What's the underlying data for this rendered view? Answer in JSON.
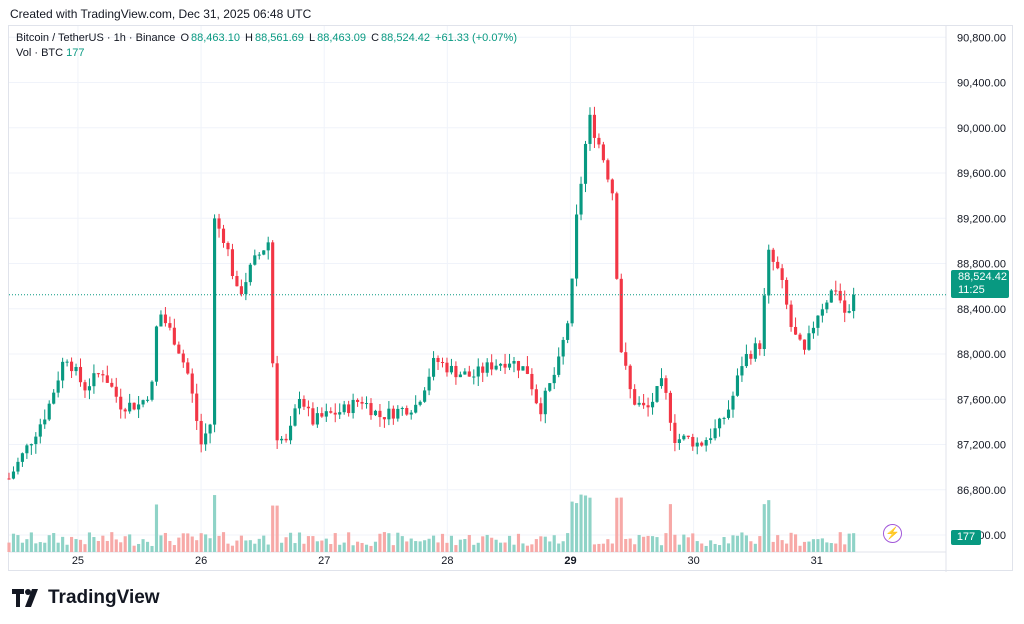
{
  "header": {
    "created": "Created with TradingView.com, Dec 31, 2025 06:48 UTC"
  },
  "legend": {
    "symbol": "Bitcoin / TetherUS · 1h · Binance",
    "o_label": "O",
    "o_value": "88,463.10",
    "h_label": "H",
    "h_value": "88,561.69",
    "l_label": "L",
    "l_value": "88,463.09",
    "c_label": "C",
    "c_value": "88,524.42",
    "change": "+61.33 (+0.07%)",
    "vol_label": "Vol · BTC",
    "vol_value": "177"
  },
  "price_tag": {
    "price": "88,524.42",
    "countdown": "11:25"
  },
  "volume_tag": "177",
  "brand": "TradingView",
  "colors": {
    "up": "#089981",
    "down": "#f23645",
    "up_vol": "#8fd3c7",
    "down_vol": "#f7a9a7",
    "grid": "#f0f3fa",
    "bolt": "#a259d9"
  },
  "chart_data": {
    "type": "candlestick",
    "interval": "1h",
    "x_ticks": [
      "25",
      "26",
      "27",
      "28",
      "29",
      "30",
      "31"
    ],
    "y_ticks": [
      "90,800.00",
      "90,400.00",
      "90,000.00",
      "89,600.00",
      "89,200.00",
      "88,800.00",
      "88,400.00",
      "88,000.00",
      "87,600.00",
      "87,200.00",
      "86,800.00",
      "86,400.00"
    ],
    "ylim": [
      86250,
      90900
    ],
    "last_price": 88524.42,
    "x_range": [
      24.44,
      32.05
    ],
    "x_anchors": [
      [
        24.44,
        86900
      ],
      [
        24.6,
        87200
      ],
      [
        24.75,
        87500
      ],
      [
        24.9,
        88000
      ],
      [
        25.05,
        87700
      ],
      [
        25.2,
        87850
      ],
      [
        25.35,
        87550
      ],
      [
        25.5,
        87550
      ],
      [
        25.6,
        87700
      ],
      [
        25.65,
        88400
      ],
      [
        25.8,
        88100
      ],
      [
        25.9,
        87800
      ],
      [
        26.0,
        87200
      ],
      [
        26.08,
        87400
      ],
      [
        26.1,
        89200
      ],
      [
        26.2,
        89000
      ],
      [
        26.3,
        88500
      ],
      [
        26.42,
        88800
      ],
      [
        26.55,
        89000
      ],
      [
        26.6,
        87300
      ],
      [
        26.7,
        87200
      ],
      [
        26.8,
        87650
      ],
      [
        26.9,
        87400
      ],
      [
        27.0,
        87450
      ],
      [
        27.15,
        87500
      ],
      [
        27.3,
        87600
      ],
      [
        27.45,
        87450
      ],
      [
        27.6,
        87500
      ],
      [
        27.75,
        87550
      ],
      [
        27.9,
        87950
      ],
      [
        28.05,
        87850
      ],
      [
        28.2,
        87800
      ],
      [
        28.35,
        87900
      ],
      [
        28.5,
        87950
      ],
      [
        28.65,
        87850
      ],
      [
        28.75,
        87500
      ],
      [
        28.9,
        87900
      ],
      [
        29.0,
        88400
      ],
      [
        29.05,
        89200
      ],
      [
        29.15,
        90100
      ],
      [
        29.25,
        89800
      ],
      [
        29.35,
        89400
      ],
      [
        29.4,
        88100
      ],
      [
        29.5,
        87600
      ],
      [
        29.62,
        87500
      ],
      [
        29.75,
        87750
      ],
      [
        29.85,
        87250
      ],
      [
        29.95,
        87250
      ],
      [
        30.05,
        87200
      ],
      [
        30.2,
        87350
      ],
      [
        30.3,
        87550
      ],
      [
        30.4,
        87950
      ],
      [
        30.55,
        88100
      ],
      [
        30.6,
        88900
      ],
      [
        30.7,
        88700
      ],
      [
        30.8,
        88200
      ],
      [
        30.9,
        88000
      ],
      [
        31.0,
        88350
      ],
      [
        31.15,
        88600
      ],
      [
        31.25,
        88300
      ],
      [
        31.3,
        88500
      ]
    ],
    "key_points": {
      "high": 90400,
      "low": 86400,
      "close": 88524.42
    },
    "volume_ticks": [
      "177"
    ]
  }
}
